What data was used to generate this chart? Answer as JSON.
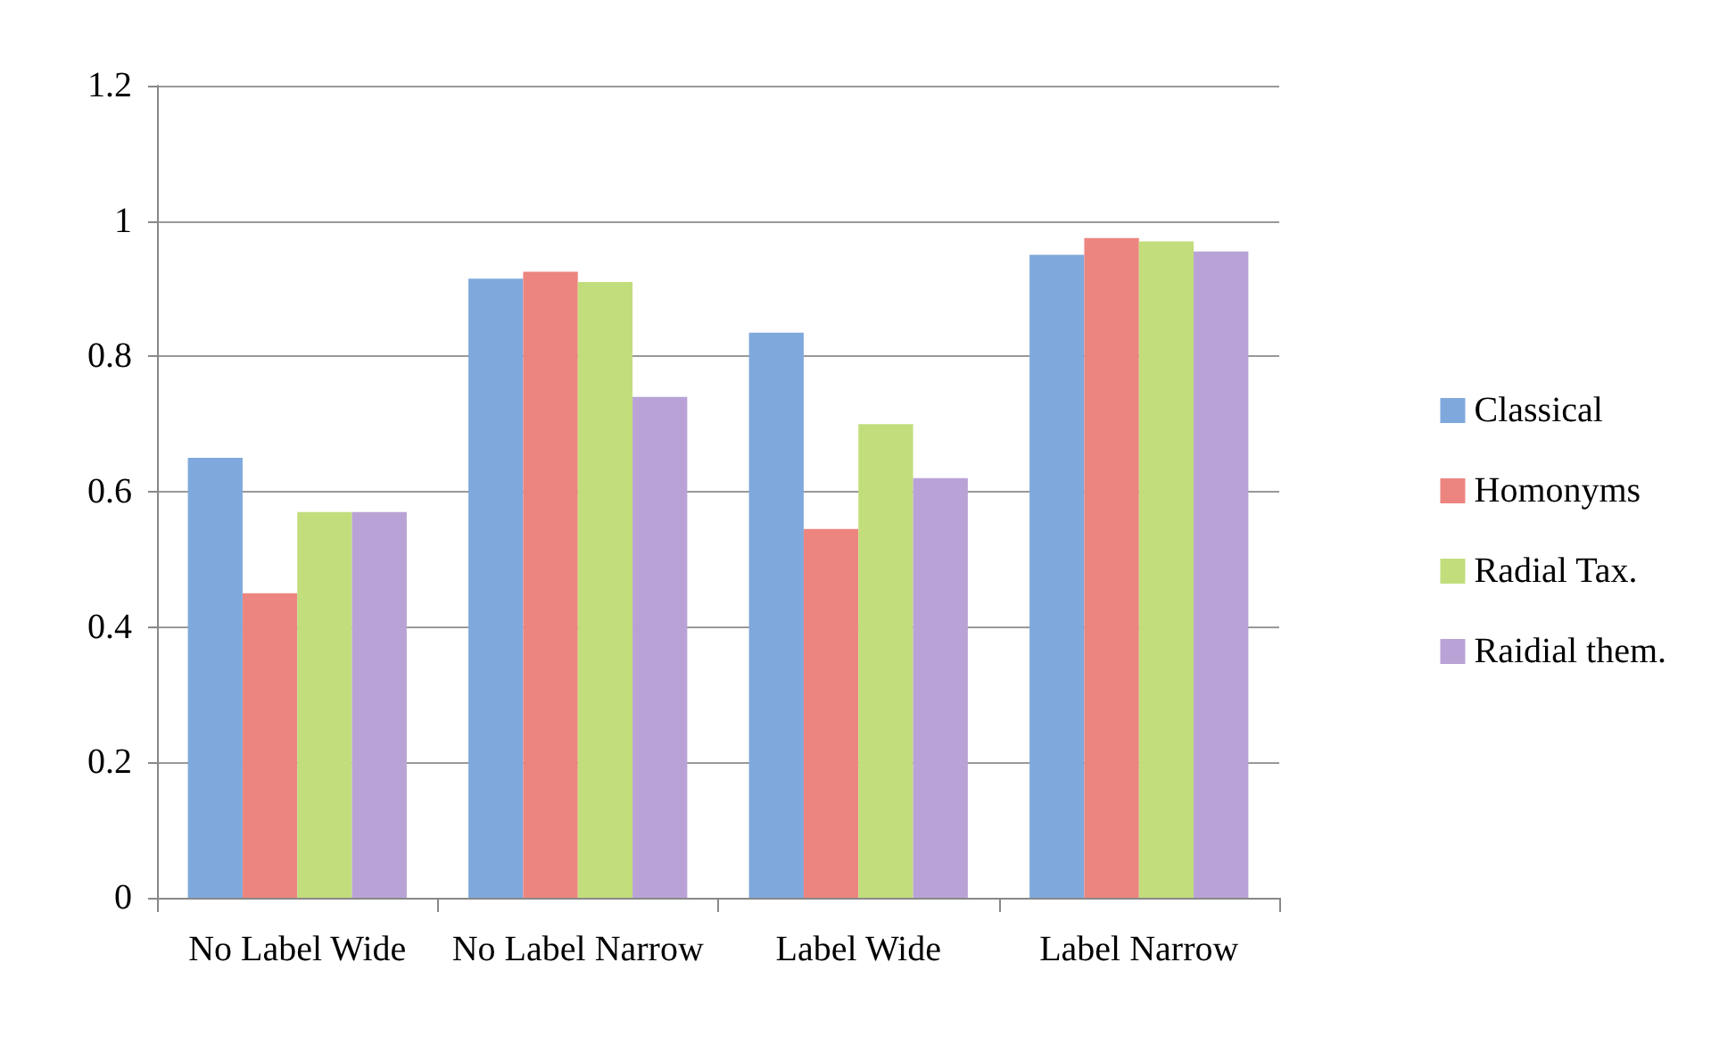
{
  "chart_data": {
    "type": "bar",
    "categories": [
      "No Label Wide",
      "No Label Narrow",
      "Label Wide",
      "Label Narrow"
    ],
    "series": [
      {
        "name": "Classical",
        "color": "#7fa9dc",
        "values": [
          0.65,
          0.915,
          0.835,
          0.95
        ]
      },
      {
        "name": "Homonyms",
        "color": "#ec8580",
        "values": [
          0.45,
          0.925,
          0.545,
          0.975
        ]
      },
      {
        "name": "Radial Tax.",
        "color": "#c2dd7c",
        "values": [
          0.57,
          0.91,
          0.7,
          0.97
        ]
      },
      {
        "name": "Raidial them.",
        "color": "#b9a3d6",
        "values": [
          0.57,
          0.74,
          0.62,
          0.955
        ]
      }
    ],
    "ylim": [
      0,
      1.2
    ],
    "yticks": [
      0,
      0.2,
      0.4,
      0.6,
      0.8,
      1,
      1.2
    ],
    "grid": "y",
    "legend": "right"
  }
}
